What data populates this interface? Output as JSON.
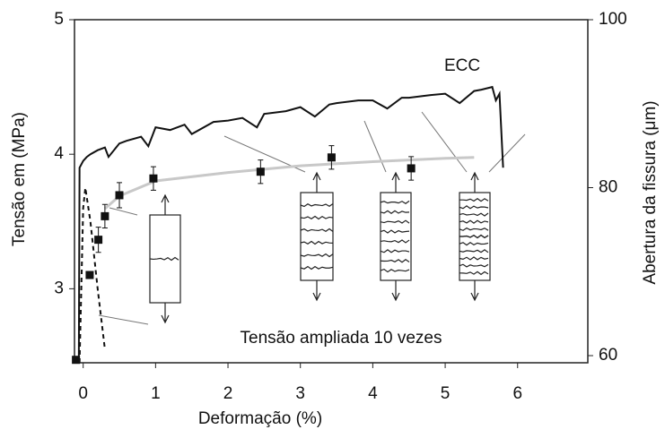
{
  "chart_data": {
    "type": "line",
    "xlabel": "Deformação (%)",
    "ylabel": "Tensão em (MPa)",
    "y2label": "Abertura da fissura (μm)",
    "xlim": [
      -0.12,
      6.97
    ],
    "xticks": [
      0,
      1,
      2,
      3,
      4,
      5,
      6
    ],
    "ylim": [
      2.45,
      5
    ],
    "yticks": [
      3,
      4,
      5
    ],
    "y2lim": [
      59.15,
      100
    ],
    "y2ticks": [
      60,
      80,
      100
    ],
    "annotations": [
      "ECC",
      "Tensão ampliada 10 vezes"
    ],
    "series": [
      {
        "color": "#111111",
        "style": "solid",
        "axis": "y",
        "x": [
          -0.06,
          -0.05,
          0,
          0.05,
          0.1,
          0.2,
          0.3,
          0.35,
          0.5,
          0.6,
          0.8,
          0.9,
          1.0,
          1.2,
          1.4,
          1.5,
          1.8,
          2.0,
          2.2,
          2.4,
          2.5,
          2.8,
          3.0,
          3.2,
          3.4,
          3.5,
          3.8,
          4.0,
          4.2,
          4.4,
          4.5,
          4.8,
          5.0,
          5.2,
          5.4,
          5.5,
          5.65,
          5.7,
          5.75,
          5.8
        ],
        "values": [
          2.45,
          3.9,
          3.95,
          3.98,
          4.0,
          4.03,
          4.05,
          3.98,
          4.08,
          4.1,
          4.13,
          4.06,
          4.2,
          4.18,
          4.22,
          4.15,
          4.24,
          4.25,
          4.27,
          4.2,
          4.3,
          4.32,
          4.35,
          4.28,
          4.37,
          4.38,
          4.4,
          4.4,
          4.34,
          4.42,
          4.42,
          4.44,
          4.45,
          4.38,
          4.47,
          4.48,
          4.5,
          4.4,
          4.45,
          3.9
        ]
      },
      {
        "color": "#111111",
        "style": "dashed",
        "axis": "y",
        "x": [
          -0.05,
          0,
          0.03,
          0.1,
          0.2,
          0.3
        ],
        "values": [
          2.45,
          3.6,
          3.75,
          3.5,
          3.0,
          2.55
        ]
      },
      {
        "color": "#c8c8c8",
        "style": "solid",
        "axis": "y2",
        "x": [
          0.3,
          0.5,
          1,
          2,
          3,
          4,
          5,
          5.4
        ],
        "values": [
          77.5,
          79,
          80.8,
          81.8,
          82.6,
          83.1,
          83.5,
          83.6
        ]
      },
      {
        "color": "#111111",
        "style": "markers",
        "axis": "y2",
        "x": [
          -0.1,
          0.09,
          0.21,
          0.3,
          0.5,
          0.97,
          2.45,
          3.43,
          4.53
        ],
        "values": [
          59.5,
          69.6,
          73.8,
          76.6,
          79.1,
          81.1,
          81.9,
          83.6,
          82.3
        ],
        "errors": [
          0,
          0,
          1.5,
          1.4,
          1.5,
          1.4,
          1.4,
          1.4,
          1.4
        ]
      }
    ]
  }
}
